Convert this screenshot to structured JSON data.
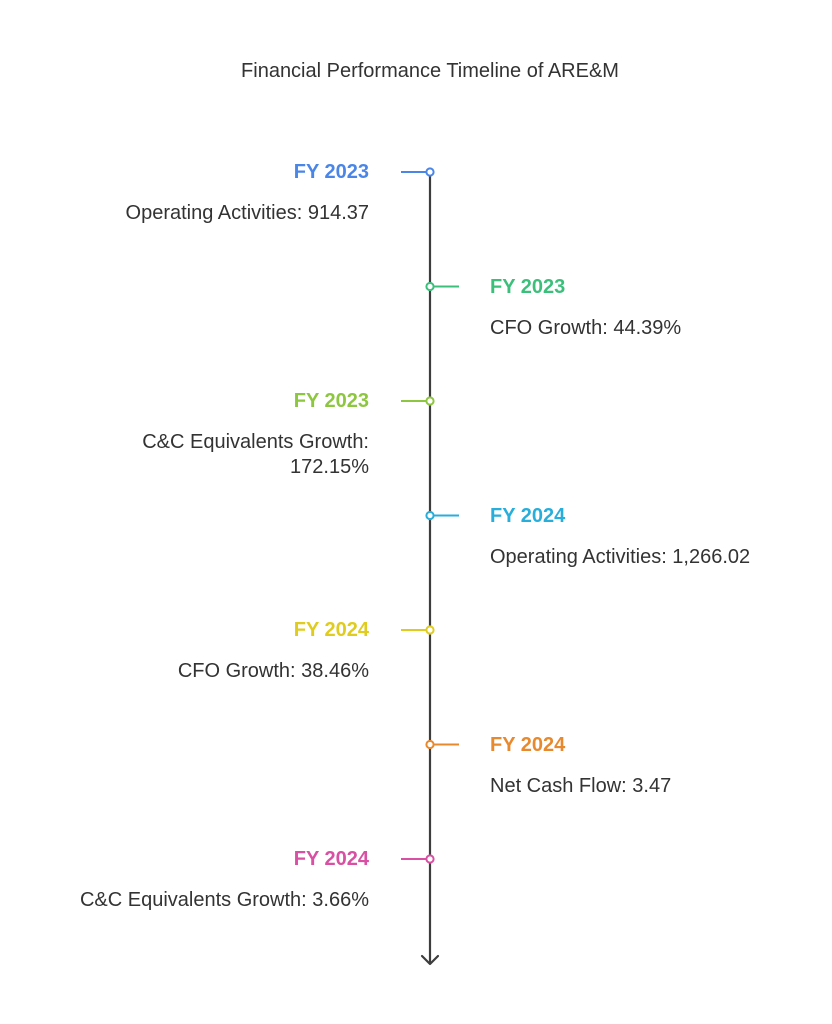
{
  "title": "Financial Performance Timeline of ARE&M",
  "events": [
    {
      "year": "FY 2023",
      "detail": "Operating Activities: 914.37",
      "side": "left",
      "color": "#4a86e8"
    },
    {
      "year": "FY 2023",
      "detail": "CFO Growth: 44.39%",
      "side": "right",
      "color": "#3dbf7c"
    },
    {
      "year": "FY 2023",
      "detail": "C&C Equivalents Growth: 172.15%",
      "side": "left",
      "color": "#8dc63f"
    },
    {
      "year": "FY 2024",
      "detail": "Operating Activities: 1,266.02",
      "side": "right",
      "color": "#27aedb"
    },
    {
      "year": "FY 2024",
      "detail": "CFO Growth: 38.46%",
      "side": "left",
      "color": "#e0cc1e"
    },
    {
      "year": "FY 2024",
      "detail": "Net Cash Flow: 3.47",
      "side": "right",
      "color": "#e8892e"
    },
    {
      "year": "FY 2024",
      "detail": "C&C Equivalents Growth: 3.66%",
      "side": "left",
      "color": "#d94fa3"
    }
  ],
  "axis_color": "#3d3d3d"
}
